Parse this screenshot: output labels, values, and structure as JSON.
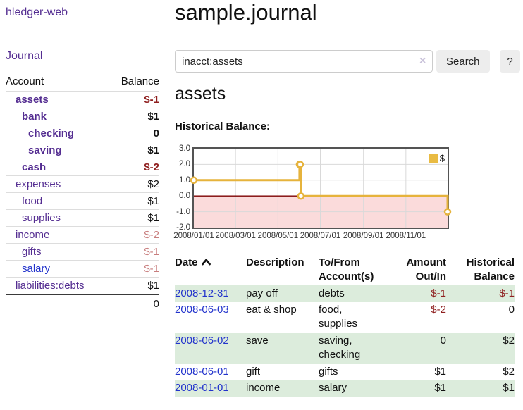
{
  "sidebar": {
    "app_link": "hledger-web",
    "journal_link": "Journal",
    "accounts": {
      "header_account": "Account",
      "header_balance": "Balance",
      "rows": [
        {
          "name": "assets",
          "balance": "$-1"
        },
        {
          "name": "bank",
          "balance": "$1"
        },
        {
          "name": "checking",
          "balance": "0"
        },
        {
          "name": "saving",
          "balance": "$1"
        },
        {
          "name": "cash",
          "balance": "$-2"
        },
        {
          "name": "expenses",
          "balance": "$2"
        },
        {
          "name": "food",
          "balance": "$1"
        },
        {
          "name": "supplies",
          "balance": "$1"
        },
        {
          "name": "income",
          "balance": "$-2"
        },
        {
          "name": "gifts",
          "balance": "$-1"
        },
        {
          "name": "salary",
          "balance": "$-1"
        },
        {
          "name": "liabilities:debts",
          "balance": "$1"
        }
      ],
      "total": "0"
    }
  },
  "main": {
    "title": "sample.journal",
    "search": {
      "value": "inacct:assets",
      "clear_icon": "×",
      "button_label": "Search",
      "help_label": "?"
    },
    "account_heading": "assets",
    "chart_heading": "Historical Balance:",
    "register": {
      "headers": {
        "date": "Date",
        "description": "Description",
        "tofrom_line1": "To/From",
        "tofrom_line2": "Account(s)",
        "amount_line1": "Amount",
        "amount_line2": "Out/In",
        "hist_line1": "Historical",
        "hist_line2": "Balance"
      },
      "rows": [
        {
          "date": "2008-12-31",
          "description": "pay off",
          "accounts": "debts",
          "amount": "$-1",
          "balance": "$-1"
        },
        {
          "date": "2008-06-03",
          "description": "eat & shop",
          "accounts": "food, supplies",
          "amount": "$-2",
          "balance": "0"
        },
        {
          "date": "2008-06-02",
          "description": "save",
          "accounts": "saving, checking",
          "amount": "0",
          "balance": "$2"
        },
        {
          "date": "2008-06-01",
          "description": "gift",
          "accounts": "gifts",
          "amount": "$1",
          "balance": "$2"
        },
        {
          "date": "2008-01-01",
          "description": "income",
          "accounts": "salary",
          "amount": "$1",
          "balance": "$1"
        }
      ]
    }
  },
  "chart_data": {
    "type": "line",
    "step": true,
    "title": "Historical Balance:",
    "legend_label": "$",
    "legend_position": "top-right",
    "grid": true,
    "xlim": [
      "2008-01-01",
      "2008-12-31"
    ],
    "ylim": [
      -2,
      3
    ],
    "x_ticks": [
      "2008/01/01",
      "2008/03/01",
      "2008/05/01",
      "2008/07/01",
      "2008/09/01",
      "2008/11/01"
    ],
    "y_ticks": [
      "3.0",
      "2.0",
      "1.0",
      "0.0",
      "-1.0",
      "-2.0"
    ],
    "points": [
      {
        "date": "2008-01-01",
        "value": 1
      },
      {
        "date": "2008-06-01",
        "value": 2
      },
      {
        "date": "2008-06-02",
        "value": 2
      },
      {
        "date": "2008-06-03",
        "value": 0
      },
      {
        "date": "2008-12-31",
        "value": -1
      }
    ],
    "line_color": "#e6b33c",
    "marker_fill": "#ffffff",
    "negative_region_fill": "#fbdbdb",
    "zero_line_color": "#7d0000",
    "grid_color": "#d9d9d9"
  },
  "colors": {
    "link_purple": "#542d91",
    "link_blue": "#2233cc",
    "negative_strong": "#8f2020",
    "negative_faded": "#c87e7e",
    "row_stripe_green": "#dcecdc"
  }
}
